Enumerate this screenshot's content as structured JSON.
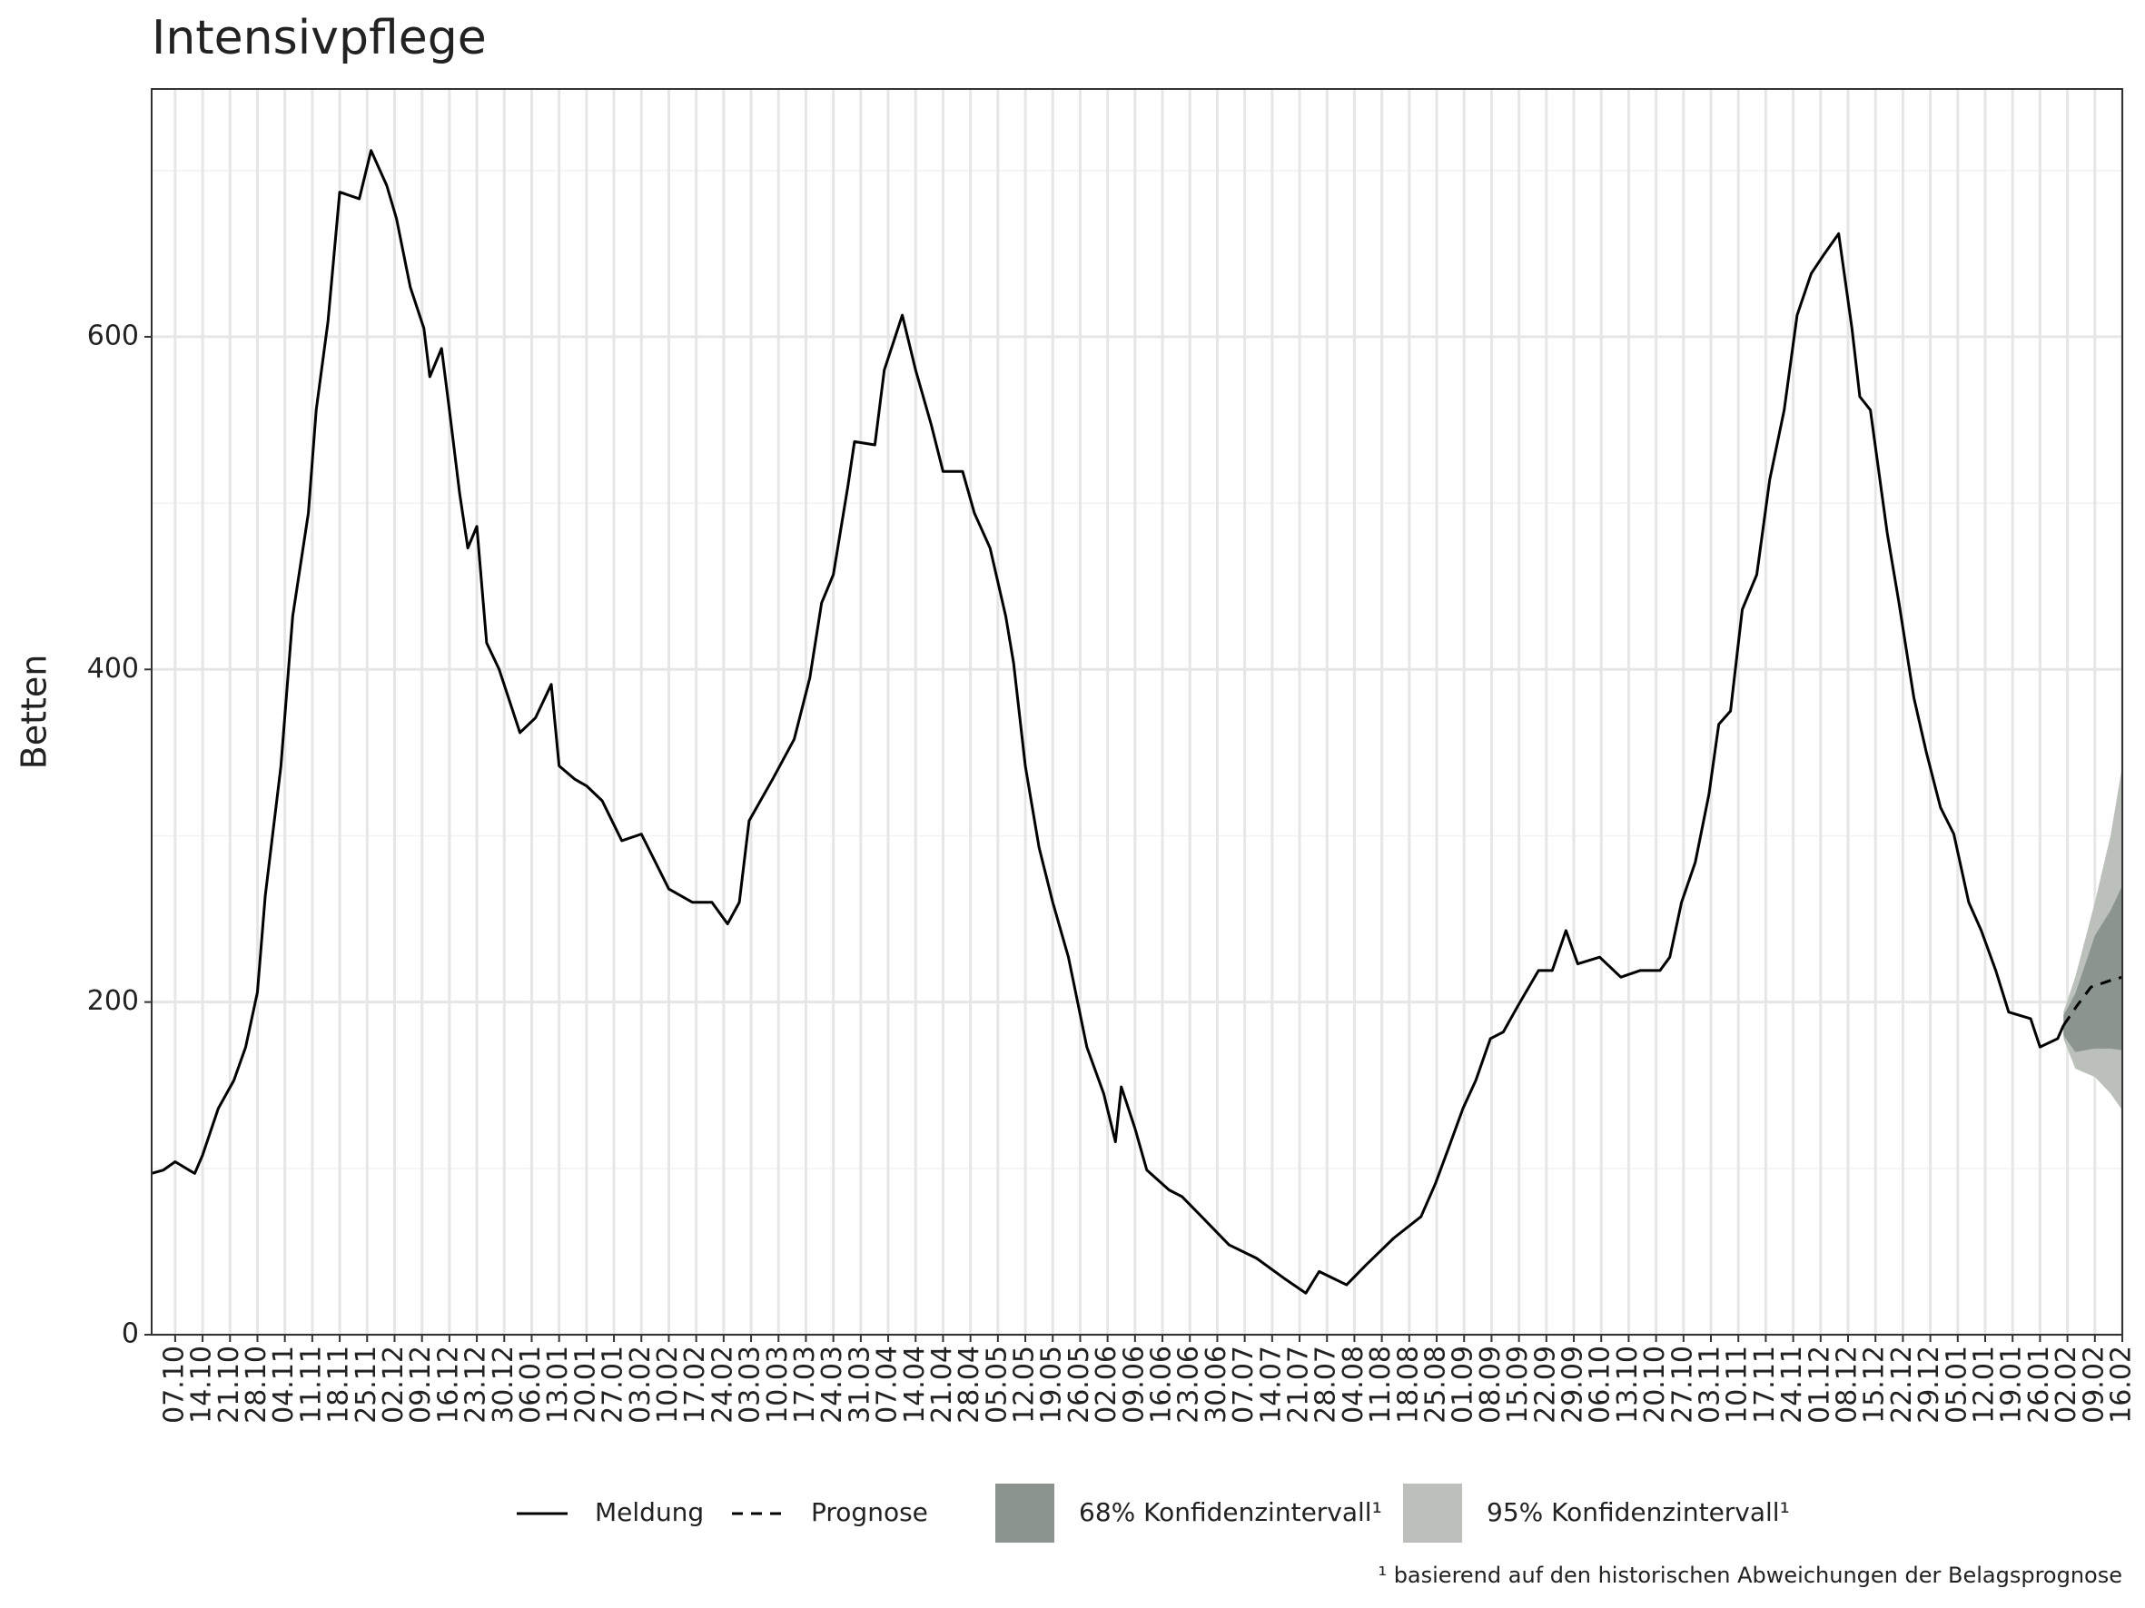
{
  "chart_data": {
    "type": "line",
    "title": "Intensivpflege",
    "y_label": "Betten",
    "footnote": "¹ basierend auf den historischen Abweichungen der Belagsprognose",
    "xlim": [
      -6,
      497
    ],
    "ylim": [
      0,
      749
    ],
    "yticks": [
      0,
      200,
      400,
      600
    ],
    "y_minor_ticks": [
      100,
      300,
      500,
      700
    ],
    "grid": true,
    "xticks": [
      {
        "value": 0,
        "label": "07.10"
      },
      {
        "value": 7,
        "label": "14.10"
      },
      {
        "value": 14,
        "label": "21.10"
      },
      {
        "value": 21,
        "label": "28.10"
      },
      {
        "value": 28,
        "label": "04.11"
      },
      {
        "value": 35,
        "label": "11.11"
      },
      {
        "value": 42,
        "label": "18.11"
      },
      {
        "value": 49,
        "label": "25.11"
      },
      {
        "value": 56,
        "label": "02.12"
      },
      {
        "value": 63,
        "label": "09.12"
      },
      {
        "value": 70,
        "label": "16.12"
      },
      {
        "value": 77,
        "label": "23.12"
      },
      {
        "value": 84,
        "label": "30.12"
      },
      {
        "value": 91,
        "label": "06.01"
      },
      {
        "value": 98,
        "label": "13.01"
      },
      {
        "value": 105,
        "label": "20.01"
      },
      {
        "value": 112,
        "label": "27.01"
      },
      {
        "value": 119,
        "label": "03.02"
      },
      {
        "value": 126,
        "label": "10.02"
      },
      {
        "value": 133,
        "label": "17.02"
      },
      {
        "value": 140,
        "label": "24.02"
      },
      {
        "value": 147,
        "label": "03.03"
      },
      {
        "value": 154,
        "label": "10.03"
      },
      {
        "value": 161,
        "label": "17.03"
      },
      {
        "value": 168,
        "label": "24.03"
      },
      {
        "value": 175,
        "label": "31.03"
      },
      {
        "value": 182,
        "label": "07.04"
      },
      {
        "value": 189,
        "label": "14.04"
      },
      {
        "value": 196,
        "label": "21.04"
      },
      {
        "value": 203,
        "label": "28.04"
      },
      {
        "value": 210,
        "label": "05.05"
      },
      {
        "value": 217,
        "label": "12.05"
      },
      {
        "value": 224,
        "label": "19.05"
      },
      {
        "value": 231,
        "label": "26.05"
      },
      {
        "value": 238,
        "label": "02.06"
      },
      {
        "value": 245,
        "label": "09.06"
      },
      {
        "value": 252,
        "label": "16.06"
      },
      {
        "value": 259,
        "label": "23.06"
      },
      {
        "value": 266,
        "label": "30.06"
      },
      {
        "value": 273,
        "label": "07.07"
      },
      {
        "value": 280,
        "label": "14.07"
      },
      {
        "value": 287,
        "label": "21.07"
      },
      {
        "value": 294,
        "label": "28.07"
      },
      {
        "value": 301,
        "label": "04.08"
      },
      {
        "value": 308,
        "label": "11.08"
      },
      {
        "value": 315,
        "label": "18.08"
      },
      {
        "value": 322,
        "label": "25.08"
      },
      {
        "value": 329,
        "label": "01.09"
      },
      {
        "value": 336,
        "label": "08.09"
      },
      {
        "value": 343,
        "label": "15.09"
      },
      {
        "value": 350,
        "label": "22.09"
      },
      {
        "value": 357,
        "label": "29.09"
      },
      {
        "value": 364,
        "label": "06.10"
      },
      {
        "value": 371,
        "label": "13.10"
      },
      {
        "value": 378,
        "label": "20.10"
      },
      {
        "value": 385,
        "label": "27.10"
      },
      {
        "value": 392,
        "label": "03.11"
      },
      {
        "value": 399,
        "label": "10.11"
      },
      {
        "value": 406,
        "label": "17.11"
      },
      {
        "value": 413,
        "label": "24.11"
      },
      {
        "value": 420,
        "label": "01.12"
      },
      {
        "value": 427,
        "label": "08.12"
      },
      {
        "value": 434,
        "label": "15.12"
      },
      {
        "value": 441,
        "label": "22.12"
      },
      {
        "value": 448,
        "label": "29.12"
      },
      {
        "value": 455,
        "label": "05.01"
      },
      {
        "value": 462,
        "label": "12.01"
      },
      {
        "value": 469,
        "label": "19.01"
      },
      {
        "value": 476,
        "label": "26.01"
      },
      {
        "value": 483,
        "label": "02.02"
      },
      {
        "value": 490,
        "label": "09.02"
      },
      {
        "value": 497,
        "label": "16.02"
      }
    ],
    "series": [
      {
        "name": "Meldung",
        "color": "#000000",
        "dash": false,
        "x": [
          -6,
          -3,
          0,
          3.5,
          5,
          7,
          11,
          15,
          18,
          21,
          23,
          27,
          30,
          34,
          36,
          39,
          42,
          47,
          50,
          54,
          56.5,
          60,
          63.5,
          65,
          68,
          70,
          72.6,
          74.7,
          77,
          79.5,
          82.7,
          88,
          92,
          96,
          98,
          102,
          105,
          109,
          114,
          119,
          126,
          132,
          137,
          141,
          144,
          146.5,
          152.5,
          158,
          162,
          165,
          168,
          171.7,
          173.4,
          178.6,
          181,
          185.6,
          189,
          193,
          196,
          201,
          204,
          208,
          212,
          214,
          217,
          220.5,
          224,
          228,
          232.7,
          237,
          240,
          241.5,
          245,
          248,
          253.7,
          257,
          262,
          269,
          276,
          283,
          288.6,
          292,
          295.5,
          299,
          304,
          311,
          318,
          321.7,
          325,
          328.7,
          332,
          335.7,
          339,
          342.8,
          348,
          351.5,
          355,
          358,
          363.6,
          369,
          374,
          379,
          381.5,
          384.5,
          388,
          391.5,
          394,
          397,
          400,
          403.7,
          407,
          410.7,
          414,
          417.6,
          421,
          424.6,
          428,
          430,
          432.7,
          437,
          440,
          443.8,
          447,
          450.6,
          454,
          457.8,
          461,
          464.7,
          468,
          473.6,
          476,
          480.5,
          482
        ],
        "values": [
          97,
          99,
          104,
          99,
          97,
          108,
          136,
          153,
          173,
          206,
          264,
          342,
          432,
          494,
          556,
          609,
          687,
          683,
          712,
          691,
          671,
          630,
          605,
          576,
          593,
          556,
          506,
          473,
          486,
          416,
          400,
          362,
          371,
          391,
          342,
          334,
          330,
          321,
          297,
          301,
          268,
          260,
          260,
          247,
          260,
          309,
          334,
          358,
          395,
          440,
          457,
          510,
          537,
          535,
          580,
          613,
          580,
          547,
          519,
          519,
          494,
          473,
          432,
          404,
          342,
          293,
          260,
          227,
          173,
          145,
          116,
          149,
          124,
          99,
          87,
          83,
          71,
          54,
          46,
          34,
          25,
          38,
          34,
          30,
          42,
          58,
          71,
          91,
          112,
          136,
          153,
          178,
          182,
          198,
          219,
          219,
          243,
          223,
          227,
          215,
          219,
          219,
          227,
          260,
          284,
          325,
          367,
          375,
          436,
          457,
          514,
          556,
          613,
          638,
          650,
          662,
          605,
          564,
          556,
          482,
          440,
          383,
          350,
          317,
          301,
          260,
          243,
          219,
          194,
          190,
          173,
          178,
          186
        ]
      },
      {
        "name": "Prognose",
        "color": "#000000",
        "dash": true,
        "x": [
          482,
          485.5,
          489,
          494,
          497
        ],
        "values": [
          186,
          198,
          209,
          213,
          215
        ]
      }
    ],
    "bands": [
      {
        "name": "95% Konfidenzintervall¹",
        "color": "#bbc0bb",
        "x": [
          482,
          485,
          490,
          494,
          497
        ],
        "lower": [
          178,
          160,
          155,
          145,
          135
        ],
        "upper": [
          194,
          215,
          260,
          300,
          342
        ]
      },
      {
        "name": "68% Konfidenzintervall¹",
        "color": "#8c9490",
        "x": [
          482,
          485,
          490,
          494,
          497
        ],
        "lower": [
          180,
          170,
          172,
          172,
          171
        ],
        "upper": [
          192,
          205,
          240,
          255,
          270
        ]
      }
    ]
  }
}
